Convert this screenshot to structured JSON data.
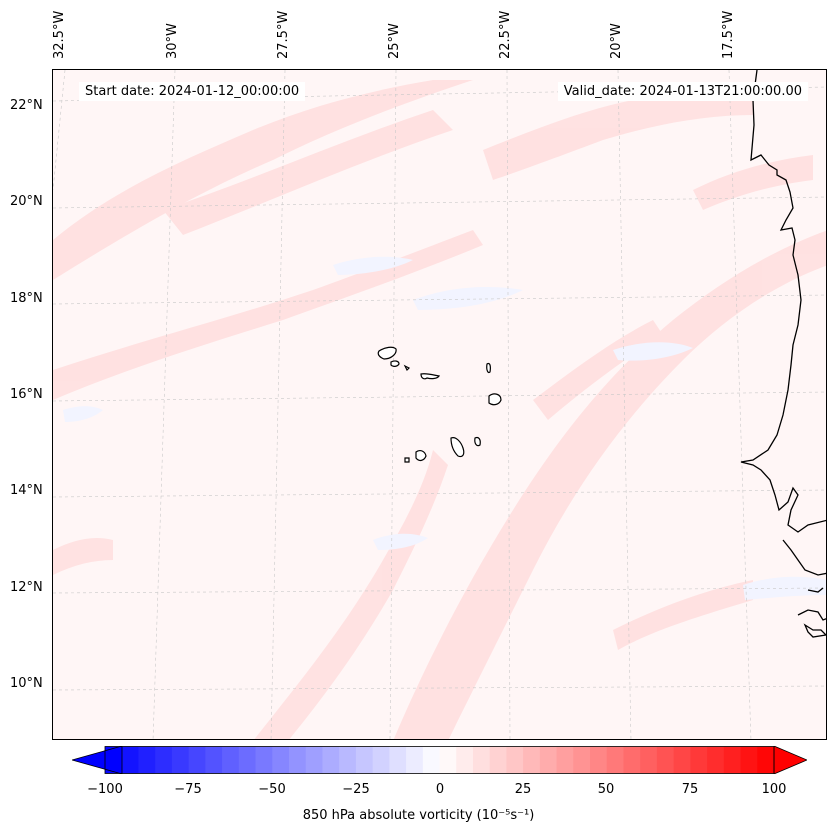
{
  "header": {
    "start_date": "Start date: 2024-01-12_00:00:00",
    "valid_date": "Valid_date: 2024-01-13T21:00:00.00"
  },
  "axes": {
    "longitude_labels": [
      "32.5°W",
      "30°W",
      "27.5°W",
      "25°W",
      "22.5°W",
      "20°W",
      "17.5°W"
    ],
    "latitude_labels": [
      "22°N",
      "20°N",
      "18°N",
      "16°N",
      "14°N",
      "12°N",
      "10°N"
    ]
  },
  "colorbar": {
    "ticks": [
      "−100",
      "−75",
      "−50",
      "−25",
      "0",
      "25",
      "50",
      "75",
      "100"
    ],
    "label": "850 hPa absolute vorticity (10⁻⁵s⁻¹)",
    "min": -100,
    "max": 100,
    "levels": 40,
    "colors": {
      "negative": "#0000ff",
      "zero": "#ffffff",
      "positive": "#ff0000"
    }
  },
  "map": {
    "field": "850 hPa absolute vorticity",
    "background_color": "#fff6f6",
    "positive_band_color": "#ffdede",
    "negative_patch_color": "#f2f4ff",
    "coastline_color": "#000000",
    "gridline_color": "#c8c8c8"
  }
}
